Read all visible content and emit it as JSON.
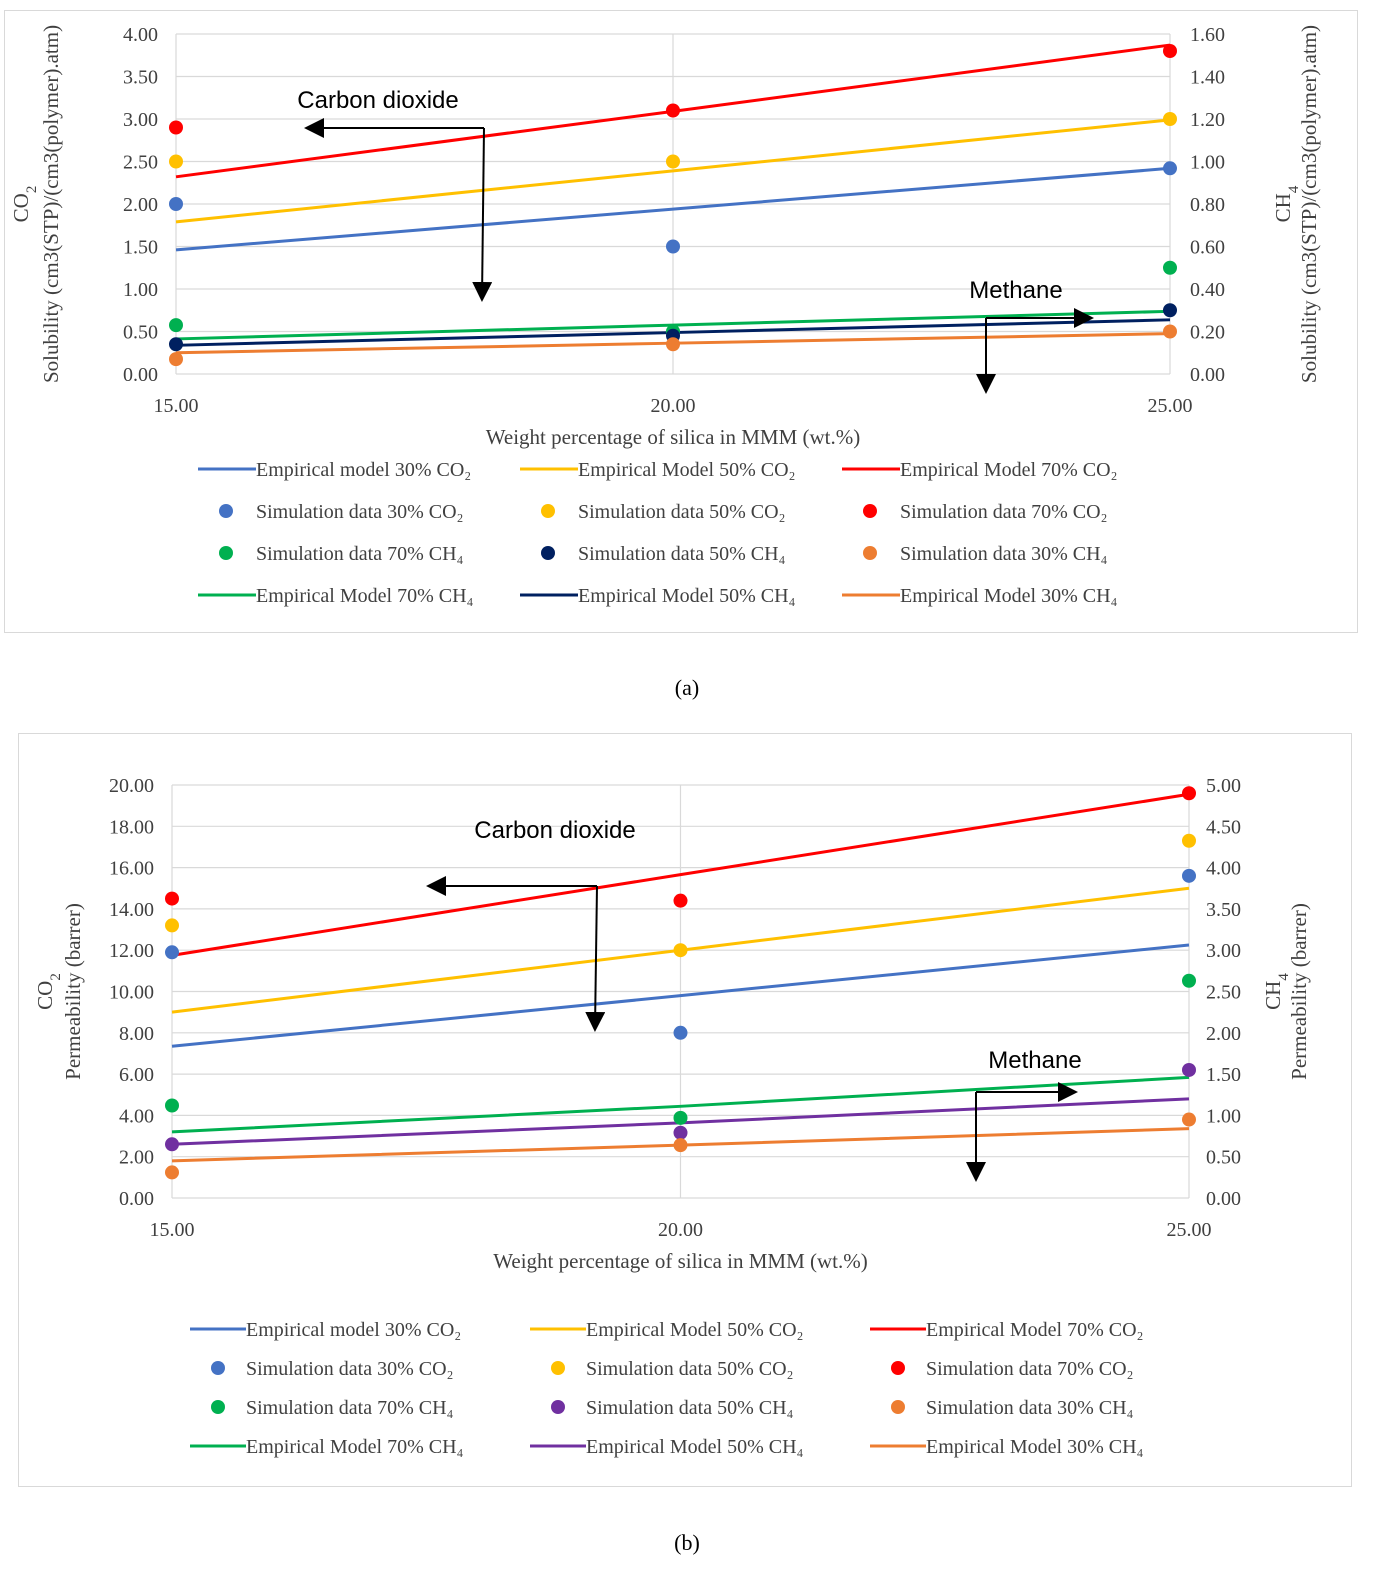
{
  "captions": {
    "a": "(a)",
    "b": "(b)"
  },
  "chart_data": [
    {
      "id": "a",
      "type": "line",
      "xlabel": "Weight percentage of silica in MMM (wt.%)",
      "ylabel_left": [
        "CO2",
        "Solubility (cm3(STP)/(cm3(polymer).atm)"
      ],
      "ylabel_right": [
        "CH4",
        "Solubility (cm3(STP)/(cm3(polymer).atm)"
      ],
      "x": [
        15,
        20,
        25
      ],
      "xticks": [
        "15.00",
        "20.00",
        "25.00"
      ],
      "xlim": [
        15,
        25
      ],
      "ylim_left": [
        0,
        4
      ],
      "yticks_left": [
        "0.00",
        "0.50",
        "1.00",
        "1.50",
        "2.00",
        "2.50",
        "3.00",
        "3.50",
        "4.00"
      ],
      "ylim_right": [
        0,
        1.6
      ],
      "yticks_right": [
        "0.00",
        "0.20",
        "0.40",
        "0.60",
        "0.80",
        "1.00",
        "1.20",
        "1.40",
        "1.60"
      ],
      "annotations": {
        "co2": "Carbon dioxide",
        "ch4": "Methane"
      },
      "series": [
        {
          "name": "Empirical model 30% CO₂",
          "kind": "line",
          "axis": "left",
          "color": "#4472c4",
          "values": [
            1.46,
            1.94,
            2.42
          ]
        },
        {
          "name": "Empirical Model 50% CO₂",
          "kind": "line",
          "axis": "left",
          "color": "#ffc000",
          "values": [
            1.79,
            2.39,
            2.99
          ]
        },
        {
          "name": "Empirical Model 70% CO₂",
          "kind": "line",
          "axis": "left",
          "color": "#ff0000",
          "values": [
            2.32,
            3.09,
            3.87
          ]
        },
        {
          "name": "Simulation data 30% CO₂",
          "kind": "point",
          "axis": "left",
          "color": "#4472c4",
          "values": [
            2.0,
            1.5,
            2.42
          ]
        },
        {
          "name": "Simulation data 50% CO₂",
          "kind": "point",
          "axis": "left",
          "color": "#ffc000",
          "values": [
            2.5,
            2.5,
            3.0
          ]
        },
        {
          "name": "Simulation data 70% CO₂",
          "kind": "point",
          "axis": "left",
          "color": "#ff0000",
          "values": [
            2.9,
            3.1,
            3.8
          ]
        },
        {
          "name": "Simulation data 70% CH₄",
          "kind": "point",
          "axis": "right",
          "color": "#00b050",
          "values": [
            0.23,
            0.2,
            0.5
          ]
        },
        {
          "name": "Simulation data 50% CH₄",
          "kind": "point",
          "axis": "right",
          "color": "#002060",
          "values": [
            0.14,
            0.18,
            0.3
          ]
        },
        {
          "name": "Simulation data 30% CH₄",
          "kind": "point",
          "axis": "right",
          "color": "#ed7d31",
          "values": [
            0.07,
            0.14,
            0.2
          ]
        },
        {
          "name": "Empirical Model 70% CH₄",
          "kind": "line",
          "axis": "right",
          "color": "#00b050",
          "values": [
            0.165,
            0.23,
            0.295
          ]
        },
        {
          "name": "Empirical Model 50% CH₄",
          "kind": "line",
          "axis": "right",
          "color": "#002060",
          "values": [
            0.135,
            0.195,
            0.255
          ]
        },
        {
          "name": "Empirical Model 30% CH₄",
          "kind": "line",
          "axis": "right",
          "color": "#ed7d31",
          "values": [
            0.1,
            0.145,
            0.19
          ]
        }
      ]
    },
    {
      "id": "b",
      "type": "line",
      "xlabel": "Weight percentage of silica in MMM (wt.%)",
      "ylabel_left": [
        "CO2",
        "Permeability (barrer)"
      ],
      "ylabel_right": [
        "CH4",
        "Permeability (barrer)"
      ],
      "x": [
        15,
        20,
        25
      ],
      "xticks": [
        "15.00",
        "20.00",
        "25.00"
      ],
      "xlim": [
        15,
        25
      ],
      "ylim_left": [
        0,
        20
      ],
      "yticks_left": [
        "0.00",
        "2.00",
        "4.00",
        "6.00",
        "8.00",
        "10.00",
        "12.00",
        "14.00",
        "16.00",
        "18.00",
        "20.00"
      ],
      "ylim_right": [
        0,
        5
      ],
      "yticks_right": [
        "0.00",
        "0.50",
        "1.00",
        "1.50",
        "2.00",
        "2.50",
        "3.00",
        "3.50",
        "4.00",
        "4.50",
        "5.00"
      ],
      "annotations": {
        "co2": "Carbon dioxide",
        "ch4": "Methane"
      },
      "series": [
        {
          "name": "Empirical model 30% CO₂",
          "kind": "line",
          "axis": "left",
          "color": "#4472c4",
          "values": [
            7.35,
            9.8,
            12.25
          ]
        },
        {
          "name": "Empirical Model 50% CO₂",
          "kind": "line",
          "axis": "left",
          "color": "#ffc000",
          "values": [
            9.0,
            12.0,
            15.0
          ]
        },
        {
          "name": "Empirical Model 70% CO₂",
          "kind": "line",
          "axis": "left",
          "color": "#ff0000",
          "values": [
            11.75,
            15.66,
            19.55
          ]
        },
        {
          "name": "Simulation data 30% CO₂",
          "kind": "point",
          "axis": "left",
          "color": "#4472c4",
          "values": [
            11.9,
            8.0,
            15.6
          ]
        },
        {
          "name": "Simulation data 50% CO₂",
          "kind": "point",
          "axis": "left",
          "color": "#ffc000",
          "values": [
            13.2,
            12.0,
            17.3
          ]
        },
        {
          "name": "Simulation data 70% CO₂",
          "kind": "point",
          "axis": "left",
          "color": "#ff0000",
          "values": [
            14.5,
            14.4,
            19.6
          ]
        },
        {
          "name": "Simulation data 70% CH₄",
          "kind": "point",
          "axis": "right",
          "color": "#00b050",
          "values": [
            1.12,
            0.97,
            2.63
          ]
        },
        {
          "name": "Simulation data 50% CH₄",
          "kind": "point",
          "axis": "right",
          "color": "#7030a0",
          "values": [
            0.65,
            0.79,
            1.55
          ]
        },
        {
          "name": "Simulation data 30% CH₄",
          "kind": "point",
          "axis": "right",
          "color": "#ed7d31",
          "values": [
            0.31,
            0.64,
            0.95
          ]
        },
        {
          "name": "Empirical Model 70% CH₄",
          "kind": "line",
          "axis": "right",
          "color": "#00b050",
          "values": [
            0.8,
            1.11,
            1.46
          ]
        },
        {
          "name": "Empirical Model 50% CH₄",
          "kind": "line",
          "axis": "right",
          "color": "#7030a0",
          "values": [
            0.65,
            0.91,
            1.2
          ]
        },
        {
          "name": "Empirical Model 30% CH₄",
          "kind": "line",
          "axis": "right",
          "color": "#ed7d31",
          "values": [
            0.45,
            0.64,
            0.84
          ]
        }
      ]
    }
  ]
}
